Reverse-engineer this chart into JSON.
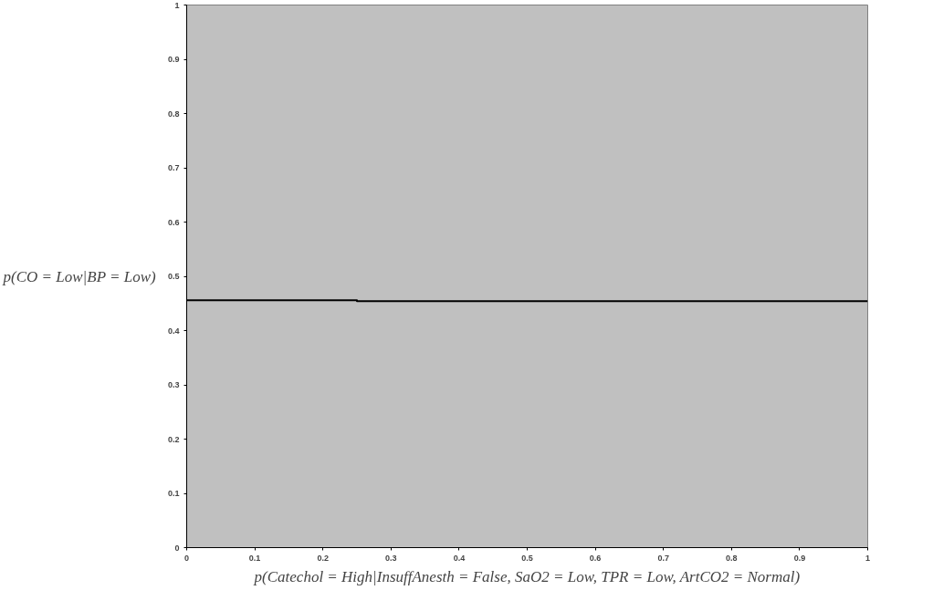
{
  "chart_data": {
    "type": "line",
    "xlabel": "p(Catechol = High|InsuffAnesth = False, SaO2 = Low, TPR = Low, ArtCO2 = Normal)",
    "ylabel": "p(CO = Low|BP = Low)",
    "x": [
      0,
      0.25,
      0.25,
      1
    ],
    "series": [
      {
        "color": "#000000",
        "values": [
          0.456,
          0.456,
          0.454,
          0.454
        ]
      }
    ],
    "xlim": [
      0,
      1
    ],
    "ylim": [
      0,
      1
    ],
    "xticks": [
      0,
      0.1,
      0.2,
      0.3,
      0.4,
      0.5,
      0.6,
      0.7,
      0.8,
      0.9,
      1
    ],
    "yticks": [
      0,
      0.1,
      0.2,
      0.3,
      0.4,
      0.5,
      0.6,
      0.7,
      0.8,
      0.9,
      1
    ],
    "grid": false,
    "marker": "none",
    "line_style": "solid"
  }
}
